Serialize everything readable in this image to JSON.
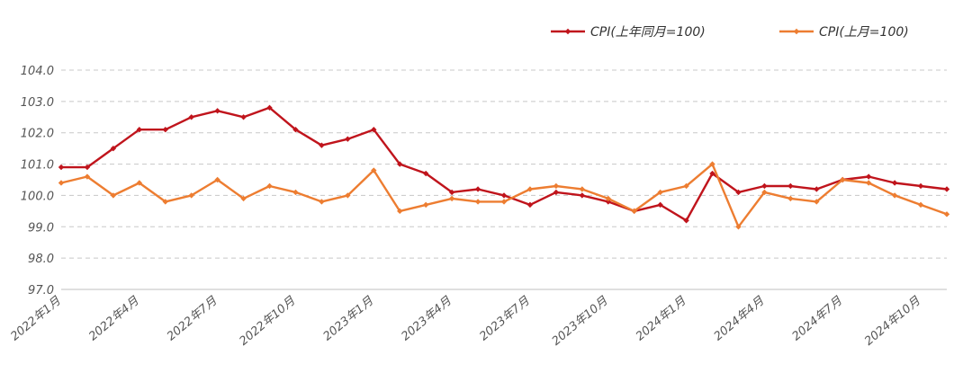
{
  "chart_data": {
    "type": "line",
    "title": "",
    "xlabel": "",
    "ylabel": "",
    "ylim": [
      97.0,
      104.0
    ],
    "yticks": [
      "104.0",
      "103.0",
      "102.0",
      "101.0",
      "100.0",
      "99.0",
      "98.0",
      "97.0"
    ],
    "grid": "horizontal-dashed",
    "legend_position": "top-right",
    "x": [
      "2022年1月",
      "2022年2月",
      "2022年3月",
      "2022年4月",
      "2022年5月",
      "2022年6月",
      "2022年7月",
      "2022年8月",
      "2022年9月",
      "2022年10月",
      "2022年11月",
      "2022年12月",
      "2023年1月",
      "2023年2月",
      "2023年3月",
      "2023年4月",
      "2023年5月",
      "2023年6月",
      "2023年7月",
      "2023年8月",
      "2023年9月",
      "2023年10月",
      "2023年11月",
      "2023年12月",
      "2024年1月",
      "2024年2月",
      "2024年3月",
      "2024年4月",
      "2024年5月",
      "2024年6月",
      "2024年7月",
      "2024年8月",
      "2024年9月",
      "2024年10月",
      "2024年11月"
    ],
    "xtick_labels": [
      "2022年1月",
      "2022年4月",
      "2022年7月",
      "2022年10月",
      "2023年1月",
      "2023年4月",
      "2023年7月",
      "2023年10月",
      "2024年1月",
      "2024年4月",
      "2024年7月",
      "2024年10月"
    ],
    "series": [
      {
        "name": "CPI(上年同月=100)",
        "color": "#C0141C",
        "values": [
          100.9,
          100.9,
          101.5,
          102.1,
          102.1,
          102.5,
          102.7,
          102.5,
          102.8,
          102.1,
          101.6,
          101.8,
          102.1,
          101.0,
          100.7,
          100.1,
          100.2,
          100.0,
          99.7,
          100.1,
          100.0,
          99.8,
          99.5,
          99.7,
          99.2,
          100.7,
          100.1,
          100.3,
          100.3,
          100.2,
          100.5,
          100.6,
          100.4,
          100.3,
          100.2
        ]
      },
      {
        "name": "CPI(上月=100)",
        "color": "#ED7D31",
        "values": [
          100.4,
          100.6,
          100.0,
          100.4,
          99.8,
          100.0,
          100.5,
          99.9,
          100.3,
          100.1,
          99.8,
          100.0,
          100.8,
          99.5,
          99.7,
          99.9,
          99.8,
          99.8,
          100.2,
          100.3,
          100.2,
          99.9,
          99.5,
          100.1,
          100.3,
          101.0,
          99.0,
          100.1,
          99.9,
          99.8,
          100.5,
          100.4,
          100.0,
          99.7,
          99.4
        ]
      }
    ]
  }
}
